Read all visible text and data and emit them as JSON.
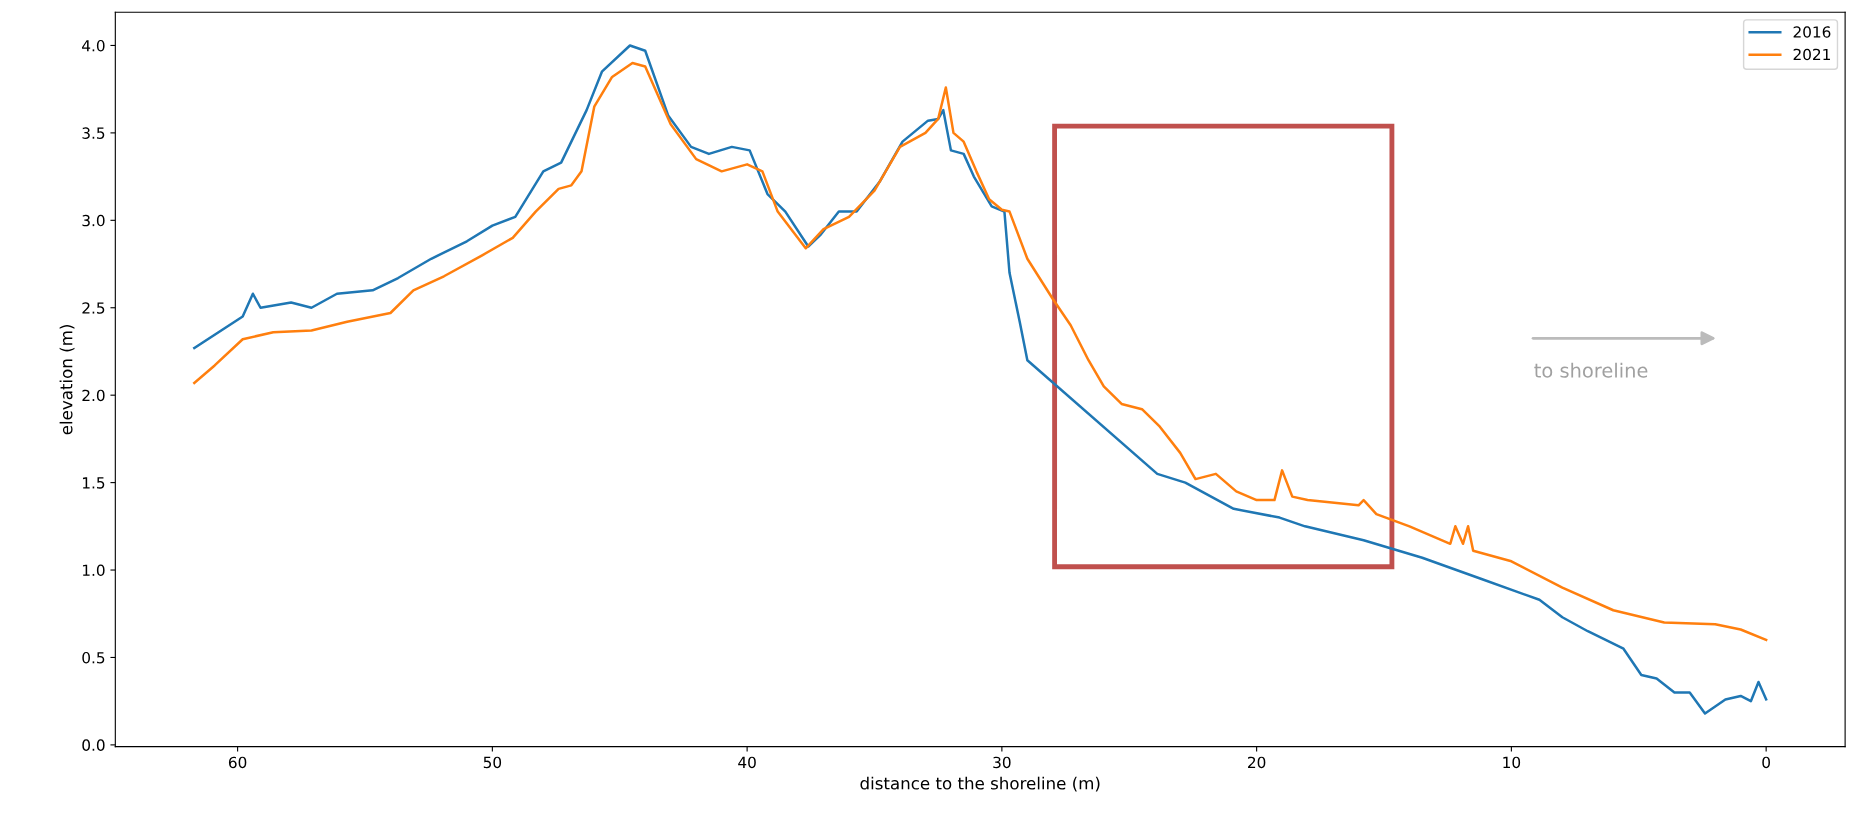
{
  "chart_data": {
    "type": "line",
    "xlabel": "distance to the shoreline (m)",
    "ylabel": "elevation (m)",
    "xlim": [
      64.8,
      -3.1
    ],
    "xticks": [
      0,
      10,
      20,
      30,
      40,
      50,
      60
    ],
    "ylim": [
      -0.01,
      4.19
    ],
    "yticks": [
      {
        "value": 0,
        "label": "0.0"
      },
      {
        "value": 0.5,
        "label": "0.5"
      },
      {
        "value": 1,
        "label": "1.0"
      },
      {
        "value": 1.5,
        "label": "1.5"
      },
      {
        "value": 2,
        "label": "2.0"
      },
      {
        "value": 2.5,
        "label": "2.5"
      },
      {
        "value": 3,
        "label": "3.0"
      },
      {
        "value": 3.5,
        "label": "3.5"
      },
      {
        "value": 4,
        "label": "4.0"
      }
    ],
    "annotations": [
      "to shoreline"
    ],
    "legend": "top right",
    "grid": false,
    "series": [
      {
        "name": "2016",
        "color": "#1f77b4",
        "x": [
          61.7,
          59.8,
          59.4,
          59.1,
          57.9,
          57.1,
          56.1,
          54.7,
          53.7,
          52.4,
          51.0,
          50.0,
          49.1,
          48.0,
          47.3,
          46.9,
          46.3,
          45.7,
          44.6,
          44.0,
          43.1,
          42.2,
          41.5,
          40.6,
          39.9,
          39.2,
          38.5,
          37.6,
          37.1,
          36.4,
          35.7,
          34.8,
          33.9,
          32.9,
          32.5,
          32.3,
          32.0,
          31.5,
          31.1,
          30.4,
          29.9,
          29.7,
          29.3,
          29.0,
          23.9,
          22.8,
          20.9,
          19.1,
          18.1,
          15.8,
          13.5,
          11.2,
          8.9,
          8.0,
          7.0,
          5.6,
          4.9,
          4.3,
          3.6,
          3.0,
          2.4,
          1.6,
          1.0,
          0.6,
          0.3,
          0.0
        ],
        "values": [
          2.27,
          2.45,
          2.58,
          2.5,
          2.53,
          2.5,
          2.58,
          2.6,
          2.67,
          2.78,
          2.88,
          2.97,
          3.02,
          3.28,
          3.33,
          3.45,
          3.63,
          3.85,
          4.0,
          3.97,
          3.6,
          3.42,
          3.38,
          3.42,
          3.4,
          3.15,
          3.05,
          2.85,
          2.92,
          3.05,
          3.05,
          3.22,
          3.45,
          3.57,
          3.58,
          3.63,
          3.4,
          3.38,
          3.25,
          3.08,
          3.05,
          2.7,
          2.42,
          2.2,
          1.55,
          1.5,
          1.35,
          1.3,
          1.25,
          1.17,
          1.07,
          0.95,
          0.83,
          0.73,
          0.65,
          0.55,
          0.4,
          0.38,
          0.3,
          0.3,
          0.18,
          0.26,
          0.28,
          0.25,
          0.36,
          0.26
        ]
      },
      {
        "name": "2021",
        "color": "#ff7f0e",
        "x": [
          61.7,
          60.9,
          59.8,
          58.6,
          57.1,
          55.7,
          54.0,
          53.1,
          51.9,
          50.4,
          49.2,
          48.3,
          47.4,
          46.9,
          46.5,
          46.0,
          45.3,
          44.5,
          44.0,
          43.0,
          42.0,
          41.0,
          40.0,
          39.4,
          38.8,
          37.7,
          37.0,
          36.0,
          35.0,
          34.0,
          33.0,
          32.5,
          32.2,
          31.9,
          31.5,
          31.0,
          30.5,
          30.0,
          29.7,
          29.0,
          28.0,
          27.3,
          26.6,
          26.0,
          25.3,
          24.5,
          23.8,
          23.0,
          22.4,
          21.6,
          20.8,
          20.0,
          19.3,
          19.0,
          18.6,
          18.0,
          16.0,
          15.8,
          15.3,
          14.0,
          12.4,
          12.2,
          11.9,
          11.7,
          11.5,
          10.0,
          8.0,
          6.0,
          4.0,
          2.0,
          1.0,
          0.0
        ],
        "values": [
          2.07,
          2.17,
          2.32,
          2.36,
          2.37,
          2.42,
          2.47,
          2.6,
          2.68,
          2.8,
          2.9,
          3.05,
          3.18,
          3.2,
          3.28,
          3.65,
          3.82,
          3.9,
          3.88,
          3.55,
          3.35,
          3.28,
          3.32,
          3.28,
          3.05,
          2.84,
          2.95,
          3.02,
          3.17,
          3.42,
          3.5,
          3.58,
          3.76,
          3.5,
          3.45,
          3.28,
          3.12,
          3.06,
          3.05,
          2.78,
          2.55,
          2.4,
          2.2,
          2.05,
          1.95,
          1.92,
          1.82,
          1.67,
          1.52,
          1.55,
          1.45,
          1.4,
          1.4,
          1.57,
          1.42,
          1.4,
          1.37,
          1.4,
          1.32,
          1.25,
          1.15,
          1.25,
          1.15,
          1.25,
          1.11,
          1.05,
          0.9,
          0.77,
          0.7,
          0.69,
          0.66,
          0.6
        ]
      }
    ]
  }
}
